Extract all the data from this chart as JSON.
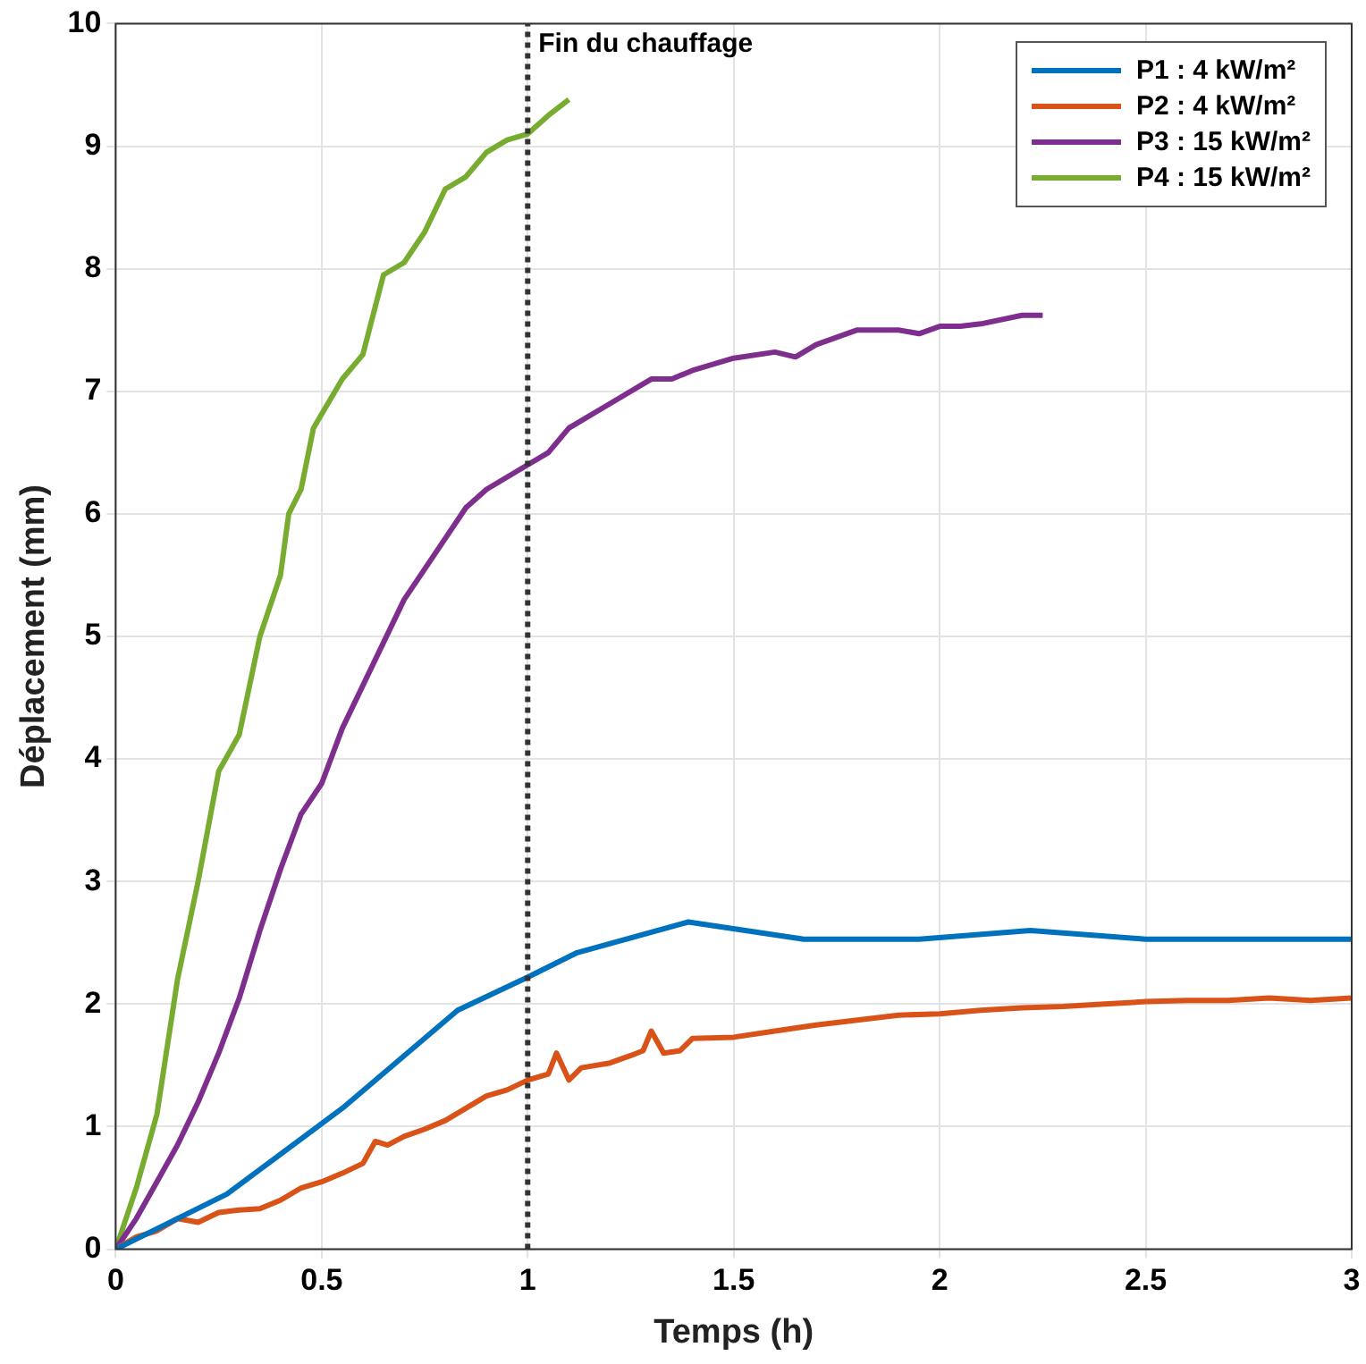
{
  "chart_data": {
    "type": "line",
    "xlabel": "Temps (h)",
    "ylabel": "Déplacement (mm)",
    "xlim": [
      0,
      3
    ],
    "xticks": [
      0,
      0.5,
      1,
      1.5,
      2,
      2.5,
      3
    ],
    "ylim": [
      0,
      10
    ],
    "yticks": [
      0,
      1,
      2,
      3,
      4,
      5,
      6,
      7,
      8,
      9,
      10
    ],
    "grid": true,
    "legend": "top right",
    "line_style": "solid",
    "marker": "none",
    "ref_lines": [
      {
        "axis": "x",
        "value": 1,
        "label": "Fin du chauffage",
        "color": "#333333",
        "line_style": "dotted"
      }
    ],
    "series": [
      {
        "name": "P1 : 4 kW/m²",
        "color": "#0072bd",
        "x": [
          0,
          0.27,
          0.55,
          0.83,
          1,
          1.12,
          1.39,
          1.67,
          1.95,
          2.22,
          2.5,
          3
        ],
        "values": [
          0,
          0.45,
          1.15,
          1.95,
          2.22,
          2.42,
          2.67,
          2.53,
          2.53,
          2.6,
          2.53,
          2.53
        ]
      },
      {
        "name": "P2 : 4 kW/m²",
        "color": "#d95319",
        "x": [
          0,
          0.05,
          0.1,
          0.15,
          0.2,
          0.25,
          0.3,
          0.35,
          0.4,
          0.45,
          0.5,
          0.55,
          0.6,
          0.63,
          0.66,
          0.7,
          0.75,
          0.8,
          0.85,
          0.9,
          0.95,
          1,
          1.05,
          1.07,
          1.1,
          1.13,
          1.2,
          1.25,
          1.28,
          1.3,
          1.33,
          1.37,
          1.4,
          1.5,
          1.6,
          1.7,
          1.8,
          1.9,
          2,
          2.1,
          2.2,
          2.3,
          2.4,
          2.5,
          2.6,
          2.7,
          2.8,
          2.9,
          3
        ],
        "values": [
          0,
          0.1,
          0.15,
          0.25,
          0.22,
          0.3,
          0.32,
          0.33,
          0.4,
          0.5,
          0.55,
          0.62,
          0.7,
          0.88,
          0.85,
          0.92,
          0.98,
          1.05,
          1.15,
          1.25,
          1.3,
          1.38,
          1.43,
          1.6,
          1.38,
          1.48,
          1.52,
          1.58,
          1.62,
          1.78,
          1.6,
          1.62,
          1.72,
          1.73,
          1.78,
          1.83,
          1.87,
          1.91,
          1.92,
          1.95,
          1.97,
          1.98,
          2,
          2.02,
          2.03,
          2.03,
          2.05,
          2.03,
          2.05
        ]
      },
      {
        "name": "P3 : 15 kW/m²",
        "color": "#7e2f8e",
        "x": [
          0,
          0.05,
          0.1,
          0.15,
          0.2,
          0.25,
          0.3,
          0.35,
          0.4,
          0.45,
          0.5,
          0.55,
          0.6,
          0.65,
          0.7,
          0.75,
          0.8,
          0.85,
          0.9,
          1,
          1.05,
          1.1,
          1.2,
          1.3,
          1.35,
          1.4,
          1.5,
          1.6,
          1.65,
          1.7,
          1.8,
          1.9,
          1.95,
          2,
          2.05,
          2.1,
          2.2,
          2.25
        ],
        "values": [
          0,
          0.25,
          0.55,
          0.85,
          1.2,
          1.6,
          2.05,
          2.6,
          3.1,
          3.55,
          3.8,
          4.25,
          4.6,
          4.95,
          5.3,
          5.55,
          5.8,
          6.05,
          6.2,
          6.4,
          6.5,
          6.7,
          6.9,
          7.1,
          7.1,
          7.17,
          7.27,
          7.32,
          7.28,
          7.38,
          7.5,
          7.5,
          7.47,
          7.53,
          7.53,
          7.55,
          7.62,
          7.62
        ]
      },
      {
        "name": "P4 : 15 kW/m²",
        "color": "#77ac30",
        "x": [
          0,
          0.05,
          0.1,
          0.15,
          0.2,
          0.25,
          0.3,
          0.35,
          0.4,
          0.42,
          0.45,
          0.48,
          0.55,
          0.6,
          0.65,
          0.7,
          0.75,
          0.8,
          0.85,
          0.9,
          0.95,
          1,
          1.05,
          1.1
        ],
        "values": [
          0,
          0.5,
          1.1,
          2.2,
          3,
          3.9,
          4.2,
          5,
          5.5,
          6,
          6.2,
          6.7,
          7.1,
          7.3,
          7.95,
          8.05,
          8.3,
          8.65,
          8.75,
          8.95,
          9.05,
          9.1,
          9.25,
          9.38
        ]
      }
    ]
  }
}
